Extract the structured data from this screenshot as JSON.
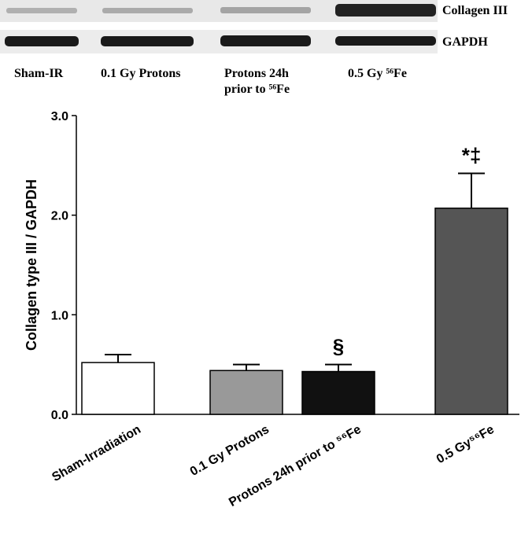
{
  "blot": {
    "bands": [
      "Collagen III",
      "GAPDH"
    ],
    "lanes": [
      [
        "Sham-IR"
      ],
      [
        "0.1 Gy Protons"
      ],
      [
        "Protons 24h",
        "prior to ⁵⁶Fe"
      ],
      [
        "0.5 Gy ⁵⁶Fe"
      ]
    ]
  },
  "chart_data": {
    "type": "bar",
    "ylabel": "Collagen type III / GAPDH",
    "categories": [
      "Sham-Irradiation",
      "0.1 Gy Protons",
      "Protons 24h prior to ⁵⁶Fe",
      "0.5 Gy⁵⁶Fe"
    ],
    "values": [
      0.52,
      0.44,
      0.43,
      2.07
    ],
    "errors": [
      0.08,
      0.06,
      0.07,
      0.35
    ],
    "colors": [
      "#ffffff",
      "#999999",
      "#111111",
      "#555555"
    ],
    "annotations": [
      null,
      null,
      "§",
      "*‡"
    ],
    "ylim": [
      0,
      3
    ],
    "yticks": [
      {
        "value": 0,
        "label": "0.0"
      },
      {
        "value": 1,
        "label": "1.0"
      },
      {
        "value": 2,
        "label": "2.0"
      },
      {
        "value": 3,
        "label": "3.0"
      }
    ]
  }
}
